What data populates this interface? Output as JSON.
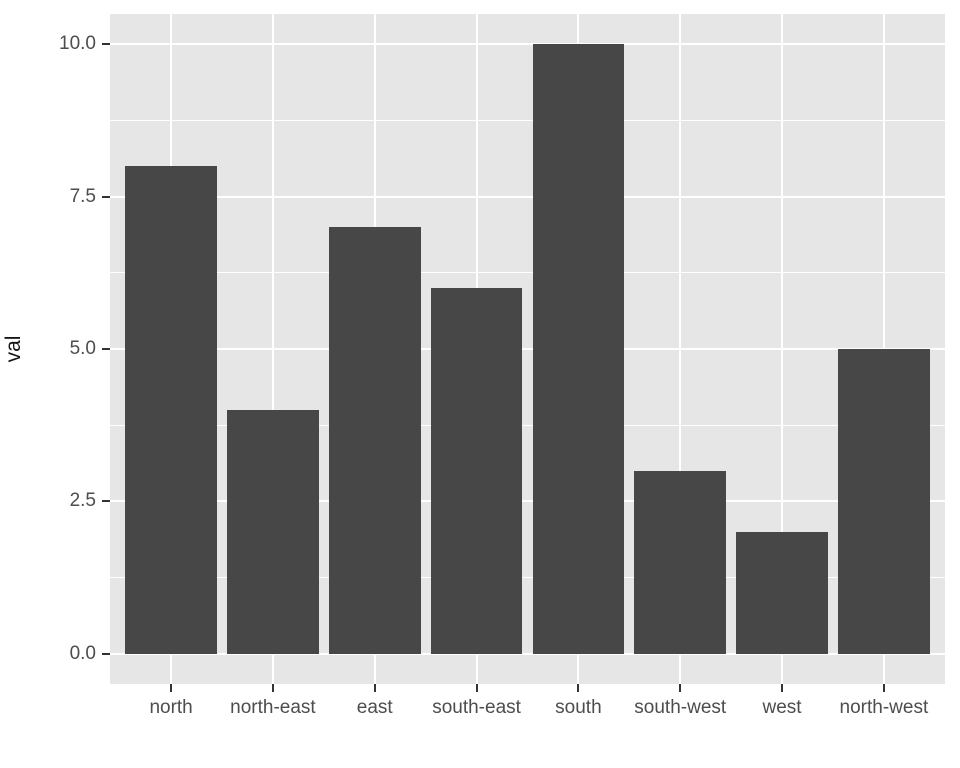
{
  "chart_data": {
    "type": "bar",
    "title": "",
    "xlabel": "",
    "ylabel": "val",
    "categories": [
      "north",
      "north-east",
      "east",
      "south-east",
      "south",
      "south-west",
      "west",
      "north-west"
    ],
    "values": [
      8,
      4,
      7,
      6,
      10,
      3,
      2,
      5
    ],
    "ytick_values": [
      0.0,
      2.5,
      5.0,
      7.5,
      10.0
    ],
    "ytick_labels": [
      "0.0",
      "2.5",
      "5.0",
      "7.5",
      "10.0"
    ],
    "yminor_values": [
      1.25,
      3.75,
      6.25,
      8.75
    ],
    "ylim": [
      0,
      10
    ],
    "legend": "none",
    "grid": "on",
    "style": "ggplot2-grey-theme",
    "colors": {
      "bar": "#474747",
      "panel_background": "#E6E6E6",
      "gridline": "#FFFFFF",
      "tick_text": "#4D4D4D",
      "axis_title_text": "#141414",
      "tick_mark": "#333333",
      "figure_background": "#FFFFFF"
    }
  }
}
